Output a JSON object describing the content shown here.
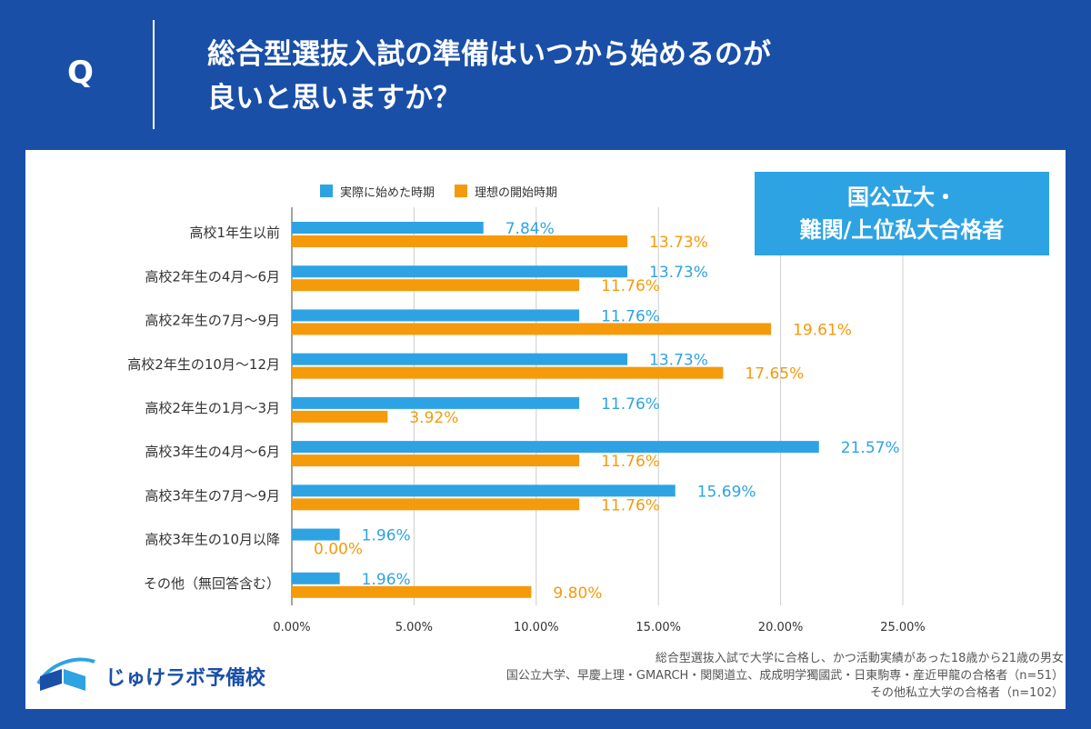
{
  "header": {
    "q_mark": "Q",
    "question_line1": "総合型選抜入試の準備はいつから始めるのが",
    "question_line2": "良いと思いますか？"
  },
  "badge": {
    "line1": "国公立大・",
    "line2": "難関/上位私大合格者"
  },
  "footnote": {
    "line1": "総合型選抜入試で大学に合格し、かつ活動実績があった18歳から21歳の男女",
    "line2": "国公立大学、早慶上理・GMARCH・関関道立、成成明学獨國武・日東駒専・産近甲龍の合格者（n=51）",
    "line3": "その他私立大学の合格者（n=102）"
  },
  "logo": {
    "text": "じゅけラボ予備校"
  },
  "colors": {
    "blue": "#2ea3e3",
    "orange": "#f59a0a",
    "header_bg": "#1a4fa8"
  },
  "chart_data": {
    "type": "bar",
    "orientation": "horizontal",
    "categories": [
      "高校1年生以前",
      "高校2年生の4月～6月",
      "高校2年生の7月～9月",
      "高校2年生の10月～12月",
      "高校2年生の1月～3月",
      "高校3年生の4月～6月",
      "高校3年生の7月～9月",
      "高校3年生の10月以降",
      "その他（無回答含む）"
    ],
    "series": [
      {
        "name": "実際に始めた時期",
        "values": [
          7.84,
          13.73,
          11.76,
          13.73,
          11.76,
          21.57,
          15.69,
          1.96,
          1.96
        ],
        "labels": [
          "7.84%",
          "13.73%",
          "11.76%",
          "13.73%",
          "11.76%",
          "21.57%",
          "15.69%",
          "1.96%",
          "1.96%"
        ]
      },
      {
        "name": "理想の開始時期",
        "values": [
          13.73,
          11.76,
          19.61,
          17.65,
          3.92,
          11.76,
          11.76,
          0.0,
          9.8
        ],
        "labels": [
          "13.73%",
          "11.76%",
          "19.61%",
          "17.65%",
          "3.92%",
          "11.76%",
          "11.76%",
          "0.00%",
          "9.80%"
        ]
      }
    ],
    "xticks": [
      0,
      5,
      10,
      15,
      20,
      25
    ],
    "xtick_labels": [
      "0.00%",
      "5.00%",
      "10.00%",
      "15.00%",
      "20.00%",
      "25.00%"
    ],
    "xlim": [
      0,
      25
    ],
    "legend_position": "top"
  }
}
